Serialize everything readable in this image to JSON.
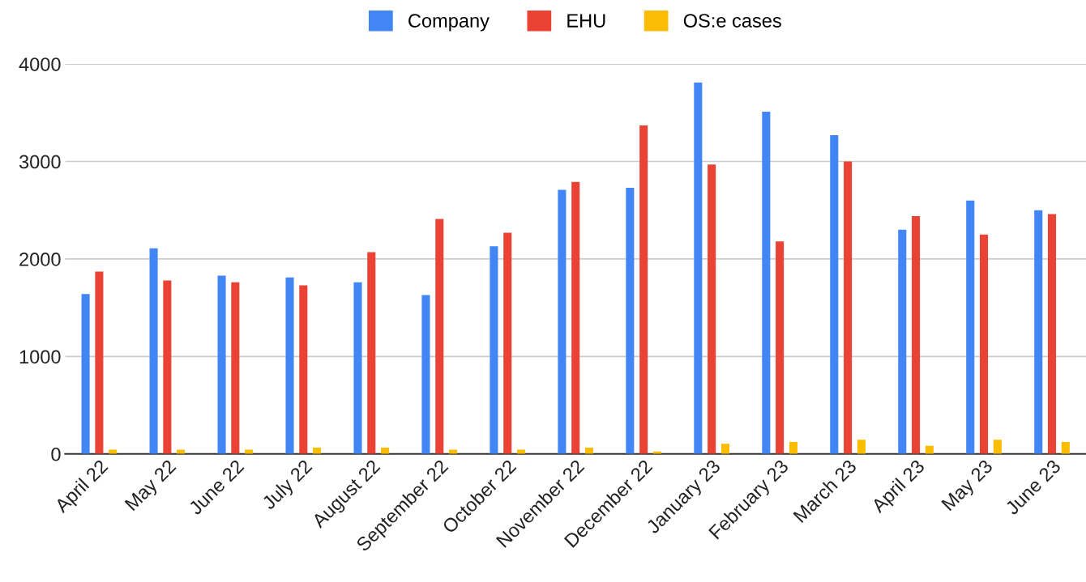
{
  "chart_data": {
    "type": "bar",
    "categories": [
      "April 22",
      "May 22",
      "June 22",
      "July 22",
      "August 22",
      "September 22",
      "October 22",
      "November 22",
      "December 22",
      "January 23",
      "February 23",
      "March 23",
      "April 23",
      "May 23",
      "June 23"
    ],
    "series": [
      {
        "name": "Company",
        "color": "#4285f4",
        "values": [
          1640,
          2110,
          1830,
          1810,
          1760,
          1630,
          2130,
          2710,
          2730,
          3810,
          3510,
          3270,
          2300,
          2600,
          2500
        ]
      },
      {
        "name": "EHU",
        "color": "#ea4335",
        "values": [
          1870,
          1780,
          1760,
          1730,
          2070,
          2410,
          2270,
          2790,
          3370,
          2970,
          2180,
          3000,
          2440,
          2250,
          2460
        ]
      },
      {
        "name": "OS:e cases",
        "color": "#fbbc04",
        "values": [
          45,
          45,
          45,
          64,
          64,
          45,
          45,
          64,
          25,
          104,
          123,
          146,
          84,
          146,
          123
        ]
      }
    ],
    "ylim": [
      0,
      4000
    ],
    "yticks": [
      0,
      1000,
      2000,
      3000,
      4000
    ],
    "grid": "y",
    "legend": "top"
  }
}
